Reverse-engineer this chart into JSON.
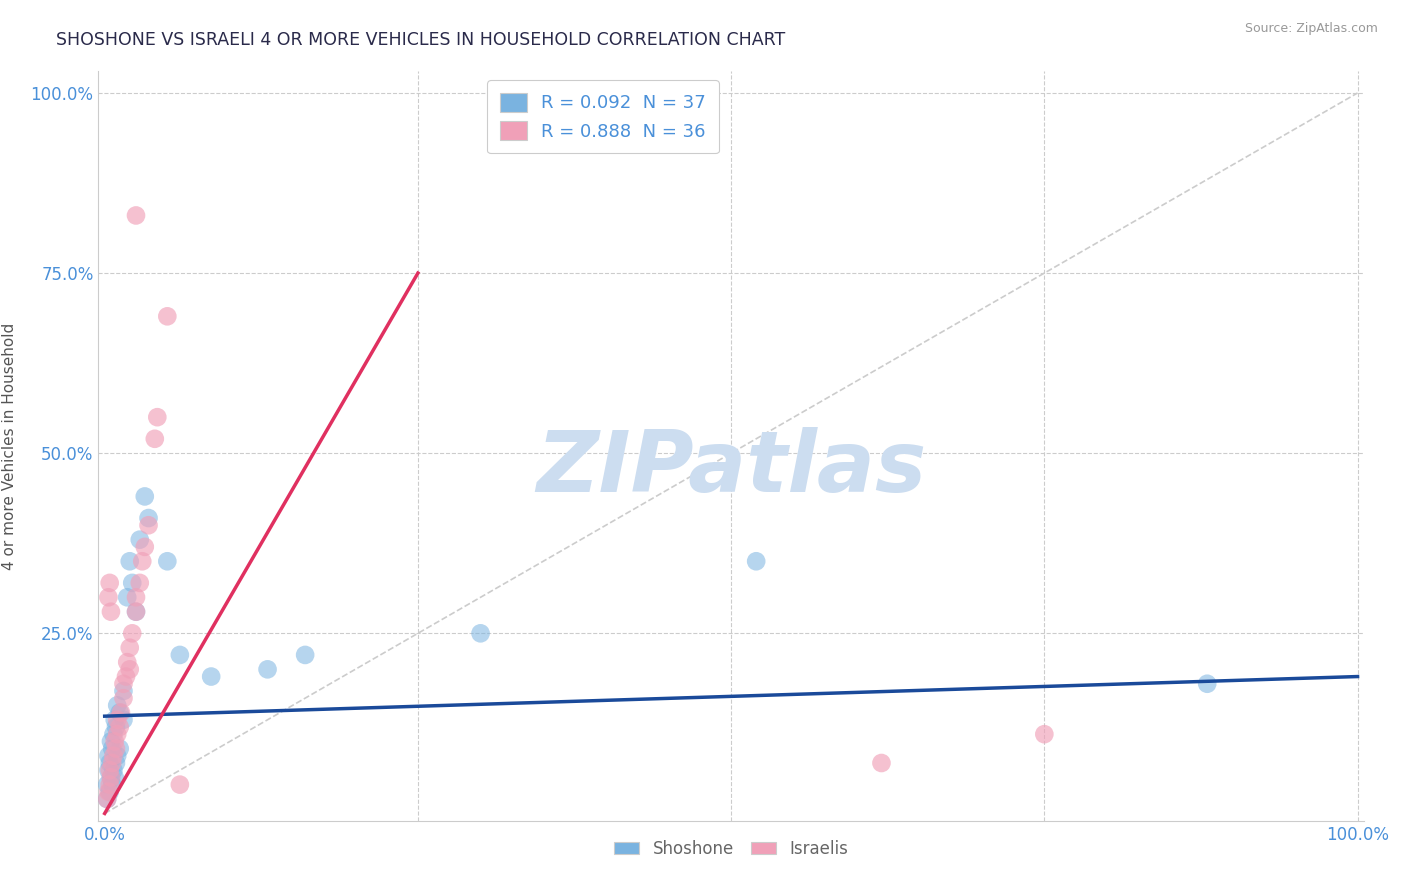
{
  "title": "SHOSHONE VS ISRAELI 4 OR MORE VEHICLES IN HOUSEHOLD CORRELATION CHART",
  "source_text": "Source: ZipAtlas.com",
  "ylabel": "4 or more Vehicles in Household",
  "shoshone_R": "0.092",
  "shoshone_N": "37",
  "israeli_R": "0.888",
  "israeli_N": "36",
  "shoshone_color": "#7ab3e0",
  "israeli_color": "#f0a0b8",
  "shoshone_line_color": "#1a4a9a",
  "israeli_line_color": "#e03060",
  "diagonal_color": "#cccccc",
  "watermark_text": "ZIPatlas",
  "watermark_color": "#ccddf0",
  "legend_label_shoshone": "Shoshone",
  "legend_label_israeli": "Israelis",
  "shoshone_line": [
    0.0,
    0.135,
    1.0,
    0.19
  ],
  "israeli_line": [
    0.0,
    0.0,
    0.25,
    0.75
  ],
  "shoshone_points": [
    [
      0.002,
      0.02
    ],
    [
      0.002,
      0.04
    ],
    [
      0.003,
      0.06
    ],
    [
      0.003,
      0.08
    ],
    [
      0.004,
      0.03
    ],
    [
      0.004,
      0.07
    ],
    [
      0.005,
      0.05
    ],
    [
      0.005,
      0.1
    ],
    [
      0.006,
      0.04
    ],
    [
      0.006,
      0.09
    ],
    [
      0.007,
      0.06
    ],
    [
      0.007,
      0.11
    ],
    [
      0.008,
      0.05
    ],
    [
      0.008,
      0.13
    ],
    [
      0.009,
      0.07
    ],
    [
      0.009,
      0.12
    ],
    [
      0.01,
      0.08
    ],
    [
      0.01,
      0.15
    ],
    [
      0.012,
      0.09
    ],
    [
      0.012,
      0.14
    ],
    [
      0.015,
      0.13
    ],
    [
      0.015,
      0.17
    ],
    [
      0.018,
      0.3
    ],
    [
      0.02,
      0.35
    ],
    [
      0.022,
      0.32
    ],
    [
      0.025,
      0.28
    ],
    [
      0.028,
      0.38
    ],
    [
      0.032,
      0.44
    ],
    [
      0.035,
      0.41
    ],
    [
      0.05,
      0.35
    ],
    [
      0.06,
      0.22
    ],
    [
      0.085,
      0.19
    ],
    [
      0.13,
      0.2
    ],
    [
      0.16,
      0.22
    ],
    [
      0.3,
      0.25
    ],
    [
      0.52,
      0.35
    ],
    [
      0.88,
      0.18
    ]
  ],
  "israeli_points": [
    [
      0.002,
      0.02
    ],
    [
      0.003,
      0.03
    ],
    [
      0.004,
      0.04
    ],
    [
      0.004,
      0.06
    ],
    [
      0.005,
      0.05
    ],
    [
      0.006,
      0.07
    ],
    [
      0.007,
      0.08
    ],
    [
      0.008,
      0.1
    ],
    [
      0.009,
      0.09
    ],
    [
      0.01,
      0.11
    ],
    [
      0.01,
      0.13
    ],
    [
      0.012,
      0.12
    ],
    [
      0.013,
      0.14
    ],
    [
      0.015,
      0.16
    ],
    [
      0.015,
      0.18
    ],
    [
      0.017,
      0.19
    ],
    [
      0.018,
      0.21
    ],
    [
      0.02,
      0.2
    ],
    [
      0.02,
      0.23
    ],
    [
      0.022,
      0.25
    ],
    [
      0.025,
      0.28
    ],
    [
      0.025,
      0.3
    ],
    [
      0.028,
      0.32
    ],
    [
      0.03,
      0.35
    ],
    [
      0.032,
      0.37
    ],
    [
      0.035,
      0.4
    ],
    [
      0.04,
      0.52
    ],
    [
      0.042,
      0.55
    ],
    [
      0.05,
      0.69
    ],
    [
      0.025,
      0.83
    ],
    [
      0.06,
      0.04
    ],
    [
      0.62,
      0.07
    ],
    [
      0.75,
      0.11
    ],
    [
      0.003,
      0.3
    ],
    [
      0.004,
      0.32
    ],
    [
      0.005,
      0.28
    ]
  ]
}
